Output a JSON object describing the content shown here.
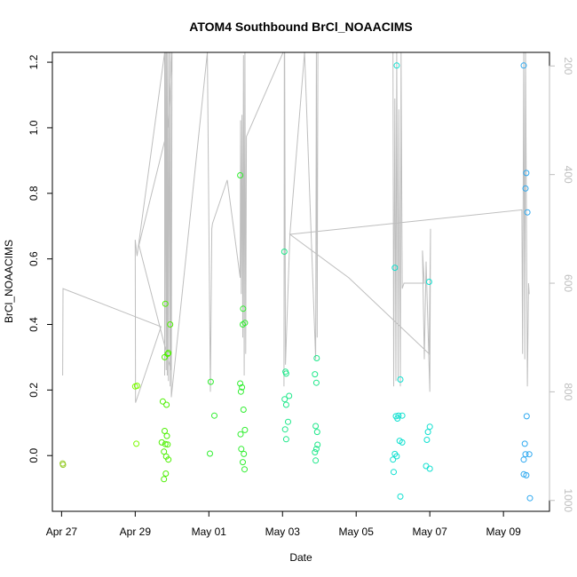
{
  "chart_data": {
    "type": "scatter",
    "title": "ATOM4 Southbound BrCl_NOAACIMS",
    "xlabel": "Date",
    "ylabel": "BrCl_NOAACIMS",
    "x_ticks": [
      {
        "day": 27,
        "label": "Apr 27"
      },
      {
        "day": 29,
        "label": "Apr 29"
      },
      {
        "day": 31,
        "label": "May 01"
      },
      {
        "day": 33,
        "label": "May 03"
      },
      {
        "day": 35,
        "label": "May 05"
      },
      {
        "day": 37,
        "label": "May 07"
      },
      {
        "day": 39,
        "label": "May 09"
      }
    ],
    "xlim": [
      26.75,
      40.25
    ],
    "y_ticks": [
      0.0,
      0.2,
      0.4,
      0.6,
      0.8,
      1.0,
      1.2
    ],
    "y_tick_labels": [
      "0.0",
      "0.2",
      "0.4",
      "0.6",
      "0.8",
      "1.0",
      "1.2"
    ],
    "ylim": [
      -0.17,
      1.23
    ],
    "y2_ticks": [
      200,
      400,
      600,
      800,
      1000
    ],
    "y2_tick_labels": [
      "200",
      "400",
      "600",
      "800",
      "1000"
    ],
    "y2lim": [
      1020,
      175
    ],
    "points": [
      {
        "x": 27.03,
        "y": -0.024,
        "c": "#9acd32"
      },
      {
        "x": 27.04,
        "y": -0.028,
        "c": "#9acd32"
      },
      {
        "x": 29.0,
        "y": 0.211,
        "c": "#7cfc00"
      },
      {
        "x": 29.05,
        "y": 0.213,
        "c": "#7cfc00"
      },
      {
        "x": 29.03,
        "y": 0.036,
        "c": "#7cfc00"
      },
      {
        "x": 29.75,
        "y": 0.165,
        "c": "#4cf000"
      },
      {
        "x": 29.85,
        "y": 0.155,
        "c": "#4cf000"
      },
      {
        "x": 29.72,
        "y": 0.04,
        "c": "#4cf000"
      },
      {
        "x": 29.82,
        "y": 0.035,
        "c": "#4cf000"
      },
      {
        "x": 29.8,
        "y": 0.075,
        "c": "#4cf000"
      },
      {
        "x": 29.86,
        "y": 0.06,
        "c": "#4cf000"
      },
      {
        "x": 29.88,
        "y": 0.034,
        "c": "#4cf000"
      },
      {
        "x": 29.78,
        "y": 0.012,
        "c": "#4cf000"
      },
      {
        "x": 29.84,
        "y": -0.003,
        "c": "#4cf000"
      },
      {
        "x": 29.9,
        "y": -0.012,
        "c": "#4cf000"
      },
      {
        "x": 29.83,
        "y": -0.055,
        "c": "#4cf000"
      },
      {
        "x": 29.78,
        "y": -0.072,
        "c": "#4cf000"
      },
      {
        "x": 29.82,
        "y": 0.463,
        "c": "#4cf000"
      },
      {
        "x": 29.95,
        "y": 0.4,
        "c": "#4cf000"
      },
      {
        "x": 29.8,
        "y": 0.3,
        "c": "#4cf000"
      },
      {
        "x": 29.9,
        "y": 0.313,
        "c": "#4cf000"
      },
      {
        "x": 29.88,
        "y": 0.31,
        "c": "#4cf000"
      },
      {
        "x": 31.05,
        "y": 0.225,
        "c": "#30ee30"
      },
      {
        "x": 31.15,
        "y": 0.122,
        "c": "#30ee30"
      },
      {
        "x": 31.03,
        "y": 0.006,
        "c": "#30ee30"
      },
      {
        "x": 31.85,
        "y": 0.855,
        "c": "#30ee30"
      },
      {
        "x": 31.93,
        "y": 0.448,
        "c": "#30ee30"
      },
      {
        "x": 31.92,
        "y": 0.4,
        "c": "#30ee30"
      },
      {
        "x": 31.98,
        "y": 0.405,
        "c": "#30ee30"
      },
      {
        "x": 31.85,
        "y": 0.22,
        "c": "#30ee30"
      },
      {
        "x": 31.9,
        "y": 0.208,
        "c": "#30ee30"
      },
      {
        "x": 31.87,
        "y": 0.195,
        "c": "#30ee30"
      },
      {
        "x": 31.94,
        "y": 0.14,
        "c": "#30ee30"
      },
      {
        "x": 31.86,
        "y": 0.065,
        "c": "#30ee30"
      },
      {
        "x": 31.98,
        "y": 0.078,
        "c": "#30ee30"
      },
      {
        "x": 31.88,
        "y": 0.02,
        "c": "#30ee30"
      },
      {
        "x": 31.95,
        "y": 0.005,
        "c": "#30ee30"
      },
      {
        "x": 31.92,
        "y": -0.02,
        "c": "#30ee30"
      },
      {
        "x": 31.97,
        "y": -0.042,
        "c": "#30ee30"
      },
      {
        "x": 33.05,
        "y": 0.622,
        "c": "#1ee88a"
      },
      {
        "x": 33.08,
        "y": 0.256,
        "c": "#1ee88a"
      },
      {
        "x": 33.1,
        "y": 0.25,
        "c": "#1ee88a"
      },
      {
        "x": 33.06,
        "y": 0.172,
        "c": "#1ee88a"
      },
      {
        "x": 33.18,
        "y": 0.182,
        "c": "#1ee88a"
      },
      {
        "x": 33.1,
        "y": 0.155,
        "c": "#1ee88a"
      },
      {
        "x": 33.15,
        "y": 0.103,
        "c": "#1ee88a"
      },
      {
        "x": 33.07,
        "y": 0.08,
        "c": "#1ee88a"
      },
      {
        "x": 33.1,
        "y": 0.05,
        "c": "#1ee88a"
      },
      {
        "x": 33.93,
        "y": 0.297,
        "c": "#1ee88a"
      },
      {
        "x": 33.88,
        "y": 0.248,
        "c": "#1ee88a"
      },
      {
        "x": 33.92,
        "y": 0.222,
        "c": "#1ee88a"
      },
      {
        "x": 33.9,
        "y": 0.09,
        "c": "#1ee88a"
      },
      {
        "x": 33.94,
        "y": 0.072,
        "c": "#1ee88a"
      },
      {
        "x": 33.95,
        "y": 0.033,
        "c": "#1ee88a"
      },
      {
        "x": 33.92,
        "y": 0.02,
        "c": "#1ee88a"
      },
      {
        "x": 33.88,
        "y": 0.01,
        "c": "#1ee88a"
      },
      {
        "x": 33.9,
        "y": -0.015,
        "c": "#1ee88a"
      },
      {
        "x": 36.1,
        "y": 1.19,
        "c": "#10e0d0"
      },
      {
        "x": 36.05,
        "y": 0.573,
        "c": "#10e0d0"
      },
      {
        "x": 36.2,
        "y": 0.232,
        "c": "#10e0d0"
      },
      {
        "x": 36.08,
        "y": 0.12,
        "c": "#10e0d0"
      },
      {
        "x": 36.15,
        "y": 0.122,
        "c": "#10e0d0"
      },
      {
        "x": 36.12,
        "y": 0.113,
        "c": "#10e0d0"
      },
      {
        "x": 36.25,
        "y": 0.122,
        "c": "#10e0d0"
      },
      {
        "x": 36.18,
        "y": 0.045,
        "c": "#10e0d0"
      },
      {
        "x": 36.25,
        "y": 0.04,
        "c": "#10e0d0"
      },
      {
        "x": 36.05,
        "y": 0.005,
        "c": "#10e0d0"
      },
      {
        "x": 36.1,
        "y": -0.002,
        "c": "#10e0d0"
      },
      {
        "x": 36.0,
        "y": -0.012,
        "c": "#10e0d0"
      },
      {
        "x": 36.02,
        "y": -0.05,
        "c": "#10e0d0"
      },
      {
        "x": 36.2,
        "y": -0.125,
        "c": "#10e0d0"
      },
      {
        "x": 36.98,
        "y": 0.53,
        "c": "#10e0d0"
      },
      {
        "x": 37.0,
        "y": 0.088,
        "c": "#10e0d0"
      },
      {
        "x": 36.95,
        "y": 0.072,
        "c": "#10e0d0"
      },
      {
        "x": 36.92,
        "y": 0.048,
        "c": "#10e0d0"
      },
      {
        "x": 36.9,
        "y": -0.032,
        "c": "#10e0d0"
      },
      {
        "x": 37.0,
        "y": -0.04,
        "c": "#10e0d0"
      },
      {
        "x": 39.55,
        "y": 1.19,
        "c": "#2ca8f0"
      },
      {
        "x": 39.62,
        "y": 0.862,
        "c": "#2ca8f0"
      },
      {
        "x": 39.6,
        "y": 0.815,
        "c": "#2ca8f0"
      },
      {
        "x": 39.65,
        "y": 0.742,
        "c": "#2ca8f0"
      },
      {
        "x": 39.63,
        "y": 0.12,
        "c": "#2ca8f0"
      },
      {
        "x": 39.58,
        "y": 0.036,
        "c": "#2ca8f0"
      },
      {
        "x": 39.6,
        "y": 0.004,
        "c": "#2ca8f0"
      },
      {
        "x": 39.7,
        "y": 0.004,
        "c": "#2ca8f0"
      },
      {
        "x": 39.55,
        "y": -0.012,
        "c": "#2ca8f0"
      },
      {
        "x": 39.55,
        "y": -0.057,
        "c": "#2ca8f0"
      },
      {
        "x": 39.62,
        "y": -0.06,
        "c": "#2ca8f0"
      },
      {
        "x": 39.72,
        "y": -0.13,
        "c": "#2ca8f0"
      }
    ],
    "altitude_trace": [
      [
        27.03,
        770
      ],
      [
        27.04,
        610
      ],
      [
        29.7,
        680
      ],
      [
        29.01,
        820
      ],
      [
        29.0,
        520
      ],
      [
        29.05,
        550
      ],
      [
        29.8,
        175
      ],
      [
        29.8,
        770
      ],
      [
        29.82,
        175
      ],
      [
        29.84,
        760
      ],
      [
        29.85,
        175
      ],
      [
        29.87,
        770
      ],
      [
        29.88,
        175
      ],
      [
        29.9,
        780
      ],
      [
        29.92,
        175
      ],
      [
        29.95,
        790
      ],
      [
        29.96,
        175
      ],
      [
        29.97,
        760
      ],
      [
        29.1,
        530
      ],
      [
        29.9,
        310
      ],
      [
        30.0,
        175
      ],
      [
        29.98,
        810
      ],
      [
        30.96,
        175
      ],
      [
        31.04,
        800
      ],
      [
        31.08,
        500
      ],
      [
        31.1,
        490
      ],
      [
        31.5,
        410
      ],
      [
        31.85,
        590
      ],
      [
        31.86,
        300
      ],
      [
        31.88,
        620
      ],
      [
        31.9,
        290
      ],
      [
        31.92,
        700
      ],
      [
        31.94,
        180
      ],
      [
        31.96,
        770
      ],
      [
        31.98,
        175
      ],
      [
        32.0,
        730
      ],
      [
        32.02,
        330
      ],
      [
        33.05,
        170
      ],
      [
        33.04,
        790
      ],
      [
        33.06,
        175
      ],
      [
        33.08,
        750
      ],
      [
        33.2,
        510
      ],
      [
        33.6,
        175
      ],
      [
        33.9,
        740
      ],
      [
        33.92,
        175
      ],
      [
        33.94,
        700
      ],
      [
        33.96,
        175
      ],
      [
        36.0,
        175
      ],
      [
        36.02,
        790
      ],
      [
        36.05,
        260
      ],
      [
        36.08,
        780
      ],
      [
        36.1,
        175
      ],
      [
        36.14,
        780
      ],
      [
        36.16,
        280
      ],
      [
        36.2,
        790
      ],
      [
        36.22,
        175
      ],
      [
        36.25,
        610
      ],
      [
        36.3,
        600
      ],
      [
        36.85,
        600
      ],
      [
        36.8,
        540
      ],
      [
        36.85,
        740
      ],
      [
        36.9,
        560
      ],
      [
        37.0,
        800
      ],
      [
        37.02,
        500
      ],
      [
        36.98,
        730
      ],
      [
        34.8,
        590
      ],
      [
        33.2,
        510
      ],
      [
        39.5,
        465
      ],
      [
        39.52,
        730
      ],
      [
        39.55,
        175
      ],
      [
        39.58,
        740
      ],
      [
        39.6,
        175
      ],
      [
        39.65,
        790
      ],
      [
        39.68,
        600
      ],
      [
        39.7,
        620
      ]
    ]
  }
}
